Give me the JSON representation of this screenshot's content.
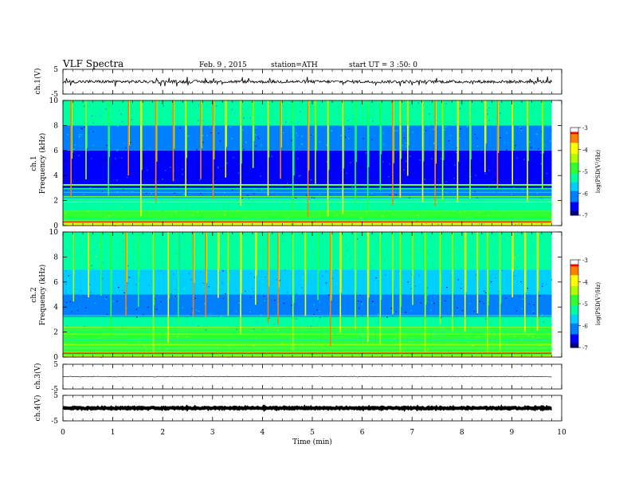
{
  "header": {
    "title": "VLF Spectra",
    "date": "Feb. 9  , 2015",
    "station": "station=ATH",
    "start_ut": "start  UT  =   3  :50: 0"
  },
  "colors": {
    "spectro_scale": [
      "#000000",
      "#00007a",
      "#0000ff",
      "#0080ff",
      "#00d0ff",
      "#00ffa0",
      "#30ff30",
      "#b0ff00",
      "#ffff00",
      "#ff8000",
      "#ff0000",
      "#ffffff"
    ],
    "waveform": "#000000"
  },
  "colorbars": [
    {
      "label": "log(PSD(V²/Hz)",
      "ticks": [
        "-3",
        "-4",
        "-5",
        "-6",
        "-7"
      ]
    },
    {
      "label": "log(PSD(V²/Hz)",
      "ticks": [
        "-3",
        "-4",
        "-5",
        "-6",
        "-7"
      ]
    }
  ],
  "chart_data": [
    {
      "type": "line",
      "name": "ch1-waveform",
      "ylabel": "ch.1(V)",
      "ylim": [
        -5,
        5
      ],
      "ytick_labels": [
        "5",
        "-5"
      ],
      "xlim": [
        0,
        10
      ],
      "data_end_min": 9.8,
      "baseline_v": 0,
      "amplitude_v": 0.6
    },
    {
      "type": "heatmap",
      "name": "ch1-spectrogram",
      "ylabel": "ch.1\nFrequency (kHz)",
      "ylim": [
        0,
        10
      ],
      "ytick_labels": [
        "0",
        "2",
        "4",
        "6",
        "8",
        "10"
      ],
      "xlim": [
        0,
        10
      ],
      "data_end_min": 9.8,
      "colorscale_range": [
        -7,
        -3
      ],
      "background_levels": [
        {
          "f_khz": [
            0,
            0.4
          ],
          "level": -4.0
        },
        {
          "f_khz": [
            0.4,
            1.2
          ],
          "level": -4.6
        },
        {
          "f_khz": [
            1.2,
            2.2
          ],
          "level": -5.2
        },
        {
          "f_khz": [
            2.2,
            3.0
          ],
          "level": -6.2
        },
        {
          "f_khz": [
            3.0,
            6.0
          ],
          "level": -6.7
        },
        {
          "f_khz": [
            6.0,
            8.0
          ],
          "level": -6.0
        },
        {
          "f_khz": [
            8.0,
            10.0
          ],
          "level": -5.4
        }
      ],
      "impulsive_events_min": [
        0.15,
        0.45,
        0.9,
        1.3,
        1.55,
        1.85,
        2.2,
        2.45,
        2.75,
        3.0,
        3.25,
        3.55,
        3.8,
        4.1,
        4.35,
        4.6,
        4.9,
        5.05,
        5.3,
        5.6,
        5.85,
        6.1,
        6.35,
        6.6,
        6.75,
        6.9,
        7.2,
        7.45,
        7.6,
        7.9,
        8.15,
        8.45,
        8.7,
        9.0,
        9.3,
        9.6
      ]
    },
    {
      "type": "heatmap",
      "name": "ch2-spectrogram",
      "ylabel": "ch.2\nFrequency (kHz)",
      "ylim": [
        0,
        10
      ],
      "ytick_labels": [
        "0",
        "2",
        "4",
        "6",
        "8",
        "10"
      ],
      "xlim": [
        0,
        10
      ],
      "data_end_min": 9.8,
      "colorscale_range": [
        -7,
        -3
      ],
      "background_levels": [
        {
          "f_khz": [
            0,
            0.4
          ],
          "level": -4.2
        },
        {
          "f_khz": [
            0.4,
            2.2
          ],
          "level": -4.8
        },
        {
          "f_khz": [
            2.2,
            3.2
          ],
          "level": -5.4
        },
        {
          "f_khz": [
            3.2,
            5.0
          ],
          "level": -6.2
        },
        {
          "f_khz": [
            5.0,
            7.0
          ],
          "level": -5.8
        },
        {
          "f_khz": [
            7.0,
            10.0
          ],
          "level": -5.2
        }
      ],
      "impulsive_events_min": [
        0.2,
        0.5,
        0.75,
        0.95,
        1.25,
        1.5,
        1.8,
        2.1,
        2.3,
        2.6,
        2.85,
        3.1,
        3.3,
        3.55,
        3.85,
        4.1,
        4.3,
        4.6,
        4.85,
        5.1,
        5.35,
        5.55,
        5.85,
        6.1,
        6.35,
        6.6,
        6.75,
        7.0,
        7.25,
        7.55,
        7.8,
        8.05,
        8.3,
        8.5,
        8.75,
        9.0,
        9.25,
        9.5
      ]
    },
    {
      "type": "line",
      "name": "ch3-waveform",
      "ylabel": "ch.3(V)",
      "ylim": [
        -5,
        5
      ],
      "ytick_labels": [
        "5",
        "-5"
      ],
      "xlim": [
        0,
        10
      ],
      "data_end_min": 9.8,
      "baseline_v": 0,
      "amplitude_v": 0.15
    },
    {
      "type": "line",
      "name": "ch4-waveform",
      "ylabel": "ch.4(V)",
      "ylim": [
        -5,
        5
      ],
      "ytick_labels": [
        "5",
        "-5"
      ],
      "xlim": [
        0,
        10
      ],
      "data_end_min": 9.8,
      "baseline_v": 0,
      "amplitude_v": 0.25
    }
  ],
  "xaxis": {
    "label": "Time  (min)",
    "tick_labels": [
      "0",
      "1",
      "2",
      "3",
      "4",
      "5",
      "6",
      "7",
      "8",
      "9",
      "10"
    ]
  }
}
